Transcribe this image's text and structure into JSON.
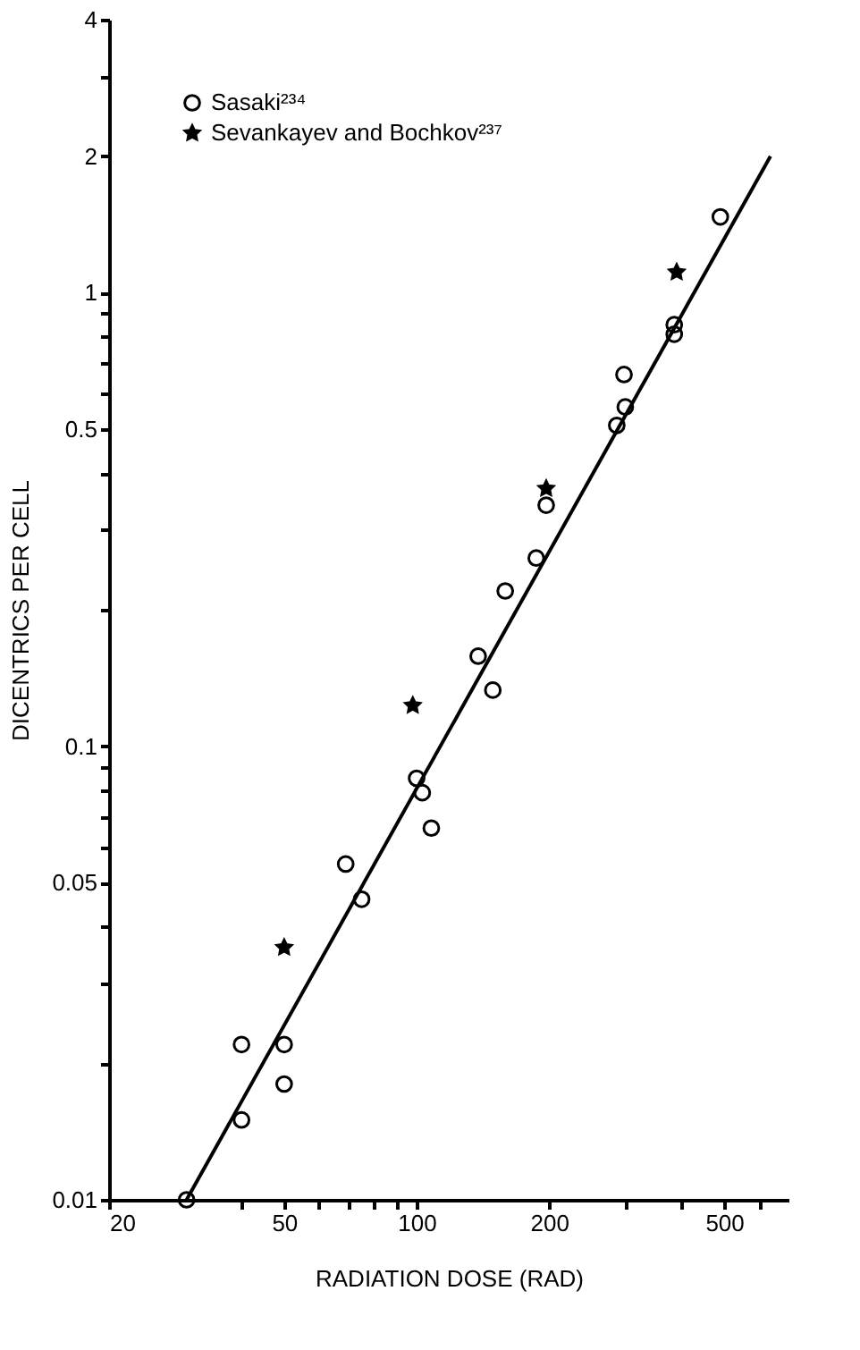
{
  "chart_data": {
    "type": "scatter",
    "xlabel": "RADIATION DOSE (RAD)",
    "ylabel": "DICENTRICS PER CELL",
    "log": "xy",
    "grid": false,
    "legend": "top left",
    "xlim": [
      20,
      700
    ],
    "xticks": [
      20,
      {
        "value": 40,
        "label": null
      },
      50,
      {
        "value": 60,
        "label": null
      },
      {
        "value": 70,
        "label": null
      },
      {
        "value": 80,
        "label": null
      },
      {
        "value": 90,
        "label": null
      },
      100,
      200,
      {
        "value": 300,
        "label": null
      },
      {
        "value": 400,
        "label": null
      },
      500,
      {
        "value": 600,
        "label": null
      }
    ],
    "ylim": [
      0.01,
      4
    ],
    "yticks": [
      0.01,
      {
        "value": 0.02,
        "label": null
      },
      {
        "value": 0.03,
        "label": null
      },
      {
        "value": 0.04,
        "label": null
      },
      0.05,
      {
        "value": 0.06,
        "label": null
      },
      {
        "value": 0.07,
        "label": null
      },
      {
        "value": 0.08,
        "label": null
      },
      {
        "value": 0.09,
        "label": null
      },
      0.1,
      {
        "value": 0.2,
        "label": null
      },
      {
        "value": 0.3,
        "label": null
      },
      {
        "value": 0.4,
        "label": null
      },
      0.5,
      {
        "value": 0.6,
        "label": null
      },
      {
        "value": 0.7,
        "label": null
      },
      {
        "value": 0.8,
        "label": null
      },
      {
        "value": 0.9,
        "label": null
      },
      1,
      2,
      {
        "value": 3,
        "label": null
      },
      4
    ],
    "series": [
      {
        "name": "Sasaki²³⁴",
        "color": "#000000",
        "marker": "circle",
        "x": [
          30,
          40,
          40,
          50,
          50,
          69,
          75,
          100,
          103,
          108,
          138,
          149,
          159,
          187,
          197,
          285,
          298,
          296,
          385,
          385,
          490
        ],
        "values": [
          0.01,
          0.015,
          0.022,
          0.022,
          0.018,
          0.055,
          0.046,
          0.085,
          0.079,
          0.066,
          0.158,
          0.133,
          0.22,
          0.26,
          0.34,
          0.51,
          0.56,
          0.66,
          0.85,
          0.81,
          1.47
        ]
      },
      {
        "name": "Sevankayev and Bochkov²³⁷",
        "color": "#000000",
        "marker": "star",
        "x": [
          50,
          98,
          197,
          390
        ],
        "values": [
          0.036,
          0.123,
          0.37,
          1.11
        ]
      },
      {
        "type": "line",
        "color": "#000000",
        "marker": "none",
        "line_style": "solid",
        "x": [
          30,
          637
        ],
        "values": [
          0.01,
          2.0
        ]
      }
    ]
  }
}
